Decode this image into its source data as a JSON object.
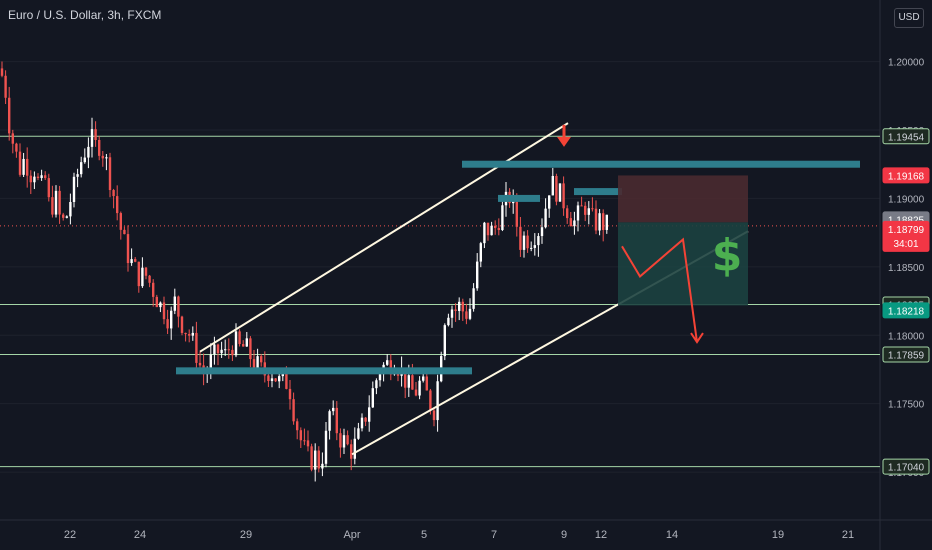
{
  "header": {
    "title": "Euro / U.S. Dollar, 3h, FXCM",
    "currency": "USD"
  },
  "colors": {
    "background": "#131722",
    "up": "#ffffff",
    "down": "#ef5350",
    "level": "#a5d6a7",
    "zone": "#2e7d8c",
    "channel": "#fff8e1",
    "arrow": "#f44336",
    "stop_zone": "#4a2a30",
    "target_zone": "#1c4140",
    "dollar": "#4caf50"
  },
  "chart_data": {
    "type": "candlestick",
    "symbol": "Euro / U.S. Dollar",
    "interval": "3h",
    "source": "FXCM",
    "x_ticks": [
      "22",
      "24",
      "29",
      "Apr",
      "5",
      "7",
      "9",
      "12",
      "14",
      "19",
      "21"
    ],
    "y_ticks": [
      "1.20000",
      "1.19500",
      "1.19000",
      "1.18500",
      "1.18000",
      "1.17500",
      "1.17000"
    ],
    "ylim": [
      1.1665,
      1.2045
    ],
    "price_labels": [
      {
        "value": 1.19454,
        "text": "1.19454",
        "kind": "level"
      },
      {
        "value": 1.19168,
        "text": "1.19168",
        "kind": "stop"
      },
      {
        "value": 1.18825,
        "text": "1.18825",
        "kind": "gray"
      },
      {
        "value": 1.18799,
        "text": "1.18799",
        "kind": "current",
        "timer": "34:01"
      },
      {
        "value": 1.18225,
        "text": "1.18225",
        "kind": "level"
      },
      {
        "value": 1.18218,
        "text": "1.18218",
        "kind": "target"
      },
      {
        "value": 1.17859,
        "text": "1.17859",
        "kind": "level"
      },
      {
        "value": 1.1704,
        "text": "1.17040",
        "kind": "level"
      }
    ],
    "horizontal_levels": [
      1.19454,
      1.18225,
      1.17859,
      1.1704
    ],
    "current_price": 1.18799,
    "close_path": [
      [
        0,
        1.1995
      ],
      [
        5,
        1.1982
      ],
      [
        10,
        1.195
      ],
      [
        15,
        1.1935
      ],
      [
        20,
        1.1922
      ],
      [
        25,
        1.193
      ],
      [
        30,
        1.1918
      ],
      [
        35,
        1.1922
      ],
      [
        40,
        1.1905
      ],
      [
        45,
        1.1915
      ],
      [
        50,
        1.189
      ],
      [
        55,
        1.1902
      ],
      [
        60,
        1.1885
      ],
      [
        65,
        1.1882
      ],
      [
        70,
        1.1898
      ],
      [
        75,
        1.191
      ],
      [
        80,
        1.1925
      ],
      [
        85,
        1.1935
      ],
      [
        90,
        1.1945
      ],
      [
        95,
        1.1938
      ],
      [
        100,
        1.194
      ],
      [
        105,
        1.193
      ],
      [
        110,
        1.1915
      ],
      [
        115,
        1.1898
      ],
      [
        120,
        1.188
      ],
      [
        125,
        1.1865
      ],
      [
        130,
        1.1855
      ],
      [
        135,
        1.1848
      ],
      [
        140,
        1.1842
      ],
      [
        145,
        1.1845
      ],
      [
        150,
        1.1838
      ],
      [
        155,
        1.183
      ],
      [
        160,
        1.1822
      ],
      [
        165,
        1.1818
      ],
      [
        170,
        1.181
      ],
      [
        175,
        1.1825
      ],
      [
        180,
        1.1812
      ],
      [
        185,
        1.1805
      ],
      [
        190,
        1.18
      ],
      [
        195,
        1.179
      ],
      [
        200,
        1.1778
      ],
      [
        205,
        1.177
      ],
      [
        210,
        1.178
      ],
      [
        215,
        1.1785
      ],
      [
        220,
        1.179
      ],
      [
        225,
        1.1785
      ],
      [
        230,
        1.1792
      ],
      [
        235,
        1.1795
      ],
      [
        240,
        1.179
      ],
      [
        245,
        1.1792
      ],
      [
        250,
        1.1785
      ],
      [
        255,
        1.178
      ],
      [
        260,
        1.1775
      ],
      [
        265,
        1.1772
      ],
      [
        270,
        1.1775
      ],
      [
        275,
        1.177
      ],
      [
        280,
        1.1765
      ],
      [
        285,
        1.1768
      ],
      [
        290,
        1.176
      ],
      [
        295,
        1.174
      ],
      [
        300,
        1.1725
      ],
      [
        305,
        1.1715
      ],
      [
        310,
        1.1708
      ],
      [
        315,
        1.1712
      ],
      [
        320,
        1.1705
      ],
      [
        325,
        1.172
      ],
      [
        330,
        1.1745
      ],
      [
        335,
        1.1735
      ],
      [
        340,
        1.1725
      ],
      [
        345,
        1.1722
      ],
      [
        350,
        1.1715
      ],
      [
        355,
        1.172
      ],
      [
        360,
        1.1728
      ],
      [
        365,
        1.174
      ],
      [
        370,
        1.1752
      ],
      [
        375,
        1.1765
      ],
      [
        380,
        1.1775
      ],
      [
        385,
        1.1778
      ],
      [
        390,
        1.178
      ],
      [
        395,
        1.1782
      ],
      [
        400,
        1.1775
      ],
      [
        405,
        1.1768
      ],
      [
        410,
        1.176
      ],
      [
        415,
        1.1758
      ],
      [
        420,
        1.1765
      ],
      [
        425,
        1.176
      ],
      [
        430,
        1.175
      ],
      [
        435,
        1.1745
      ],
      [
        440,
        1.1785
      ],
      [
        445,
        1.1815
      ],
      [
        450,
        1.1822
      ],
      [
        455,
        1.1818
      ],
      [
        460,
        1.1822
      ],
      [
        465,
        1.1815
      ],
      [
        470,
        1.182
      ],
      [
        475,
        1.184
      ],
      [
        480,
        1.186
      ],
      [
        485,
        1.188
      ],
      [
        490,
        1.1875
      ],
      [
        495,
        1.1878
      ],
      [
        500,
        1.1888
      ],
      [
        505,
        1.1895
      ],
      [
        510,
        1.1902
      ],
      [
        515,
        1.1888
      ],
      [
        520,
        1.1868
      ],
      [
        525,
        1.1872
      ],
      [
        530,
        1.187
      ],
      [
        535,
        1.1875
      ],
      [
        540,
        1.1878
      ],
      [
        545,
        1.1892
      ],
      [
        550,
        1.1912
      ],
      [
        555,
        1.1908
      ],
      [
        560,
        1.1902
      ],
      [
        565,
        1.1896
      ],
      [
        570,
        1.1888
      ],
      [
        575,
        1.1882
      ],
      [
        580,
        1.189
      ],
      [
        585,
        1.1895
      ],
      [
        590,
        1.1886
      ],
      [
        595,
        1.1882
      ],
      [
        600,
        1.1884
      ],
      [
        605,
        1.188
      ],
      [
        610,
        1.18799
      ]
    ],
    "annotations": [
      {
        "kind": "channel_upper",
        "from": [
          200,
          1.1788
        ],
        "to": [
          568,
          1.1955
        ]
      },
      {
        "kind": "channel_lower",
        "from": [
          352,
          1.1713
        ],
        "to": [
          748,
          1.1876
        ]
      },
      {
        "kind": "zone",
        "from": [
          176,
          1.1774
        ],
        "to": [
          472,
          1.1774
        ]
      },
      {
        "kind": "zone",
        "from": [
          462,
          1.1925
        ],
        "to": [
          860,
          1.1925
        ]
      },
      {
        "kind": "zone",
        "from": [
          498,
          1.19
        ],
        "to": [
          540,
          1.19
        ]
      },
      {
        "kind": "zone",
        "from": [
          574,
          1.1905
        ],
        "to": [
          622,
          1.1905
        ]
      },
      {
        "kind": "stop_box",
        "from": [
          618,
          1.19168
        ],
        "to": [
          748,
          1.18825
        ]
      },
      {
        "kind": "target_box",
        "from": [
          618,
          1.18825
        ],
        "to": [
          748,
          1.18218
        ]
      },
      {
        "kind": "arrow_down",
        "at": [
          564,
          1.1945
        ]
      },
      {
        "kind": "projection",
        "points": [
          [
            622,
            1.1865
          ],
          [
            640,
            1.1843
          ],
          [
            683,
            1.187
          ],
          [
            697,
            1.1795
          ]
        ]
      },
      {
        "kind": "dollar",
        "text": "$",
        "at": [
          727,
          1.1858
        ]
      }
    ]
  }
}
